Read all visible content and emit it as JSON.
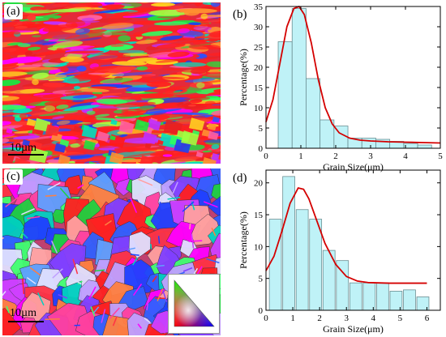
{
  "panels": {
    "a": {
      "label": "(a)",
      "scale_bar": "10µm"
    },
    "b": {
      "label": "(b)"
    },
    "c": {
      "label": "(c)",
      "scale_bar": "10µm"
    },
    "d": {
      "label": "(d)"
    }
  },
  "colors": {
    "bar_fill": "#bff2f7",
    "bar_stroke": "#6b8f93",
    "fit_line": "#d40000"
  },
  "chart_data": [
    {
      "panel": "b",
      "type": "bar",
      "xlabel": "Grain Size(μm)",
      "ylabel": "Percentage(%)",
      "xlim": [
        0,
        5
      ],
      "ylim": [
        0,
        35
      ],
      "xticks": [
        0,
        1,
        2,
        3,
        4,
        5
      ],
      "yticks": [
        0,
        5,
        10,
        15,
        20,
        25,
        30,
        35
      ],
      "bin_width": 0.4,
      "bar_centers": [
        0.55,
        0.95,
        1.35,
        1.75,
        2.15,
        2.55,
        2.95,
        3.35,
        3.75,
        4.15,
        4.55
      ],
      "values": [
        26.3,
        34.5,
        17.2,
        7.0,
        5.5,
        2.5,
        2.5,
        2.2,
        1.7,
        1.2,
        0.8
      ],
      "fit_curve": {
        "type": "lognormal-like",
        "x": [
          0,
          0.2,
          0.4,
          0.6,
          0.8,
          0.95,
          1.1,
          1.3,
          1.5,
          1.7,
          1.9,
          2.1,
          2.4,
          2.7,
          3.0,
          3.5,
          4.0,
          4.5,
          5.0
        ],
        "y": [
          6.5,
          12.0,
          21.0,
          30.0,
          34.5,
          35.0,
          33.0,
          26.0,
          17.0,
          10.0,
          6.0,
          3.8,
          2.5,
          2.0,
          1.8,
          1.6,
          1.5,
          1.4,
          1.3
        ]
      }
    },
    {
      "panel": "d",
      "type": "bar",
      "xlabel": "Grain Size(μm)",
      "ylabel": "Percentage(%)",
      "xlim": [
        0,
        6.5
      ],
      "ylim": [
        0,
        22
      ],
      "xticks": [
        0,
        1,
        2,
        3,
        4,
        5,
        6
      ],
      "yticks": [
        0,
        5,
        10,
        15,
        20
      ],
      "bin_width": 0.45,
      "bar_centers": [
        0.35,
        0.85,
        1.35,
        1.85,
        2.35,
        2.85,
        3.35,
        3.85,
        4.35,
        4.85,
        5.35,
        5.85
      ],
      "values": [
        14.3,
        21.0,
        15.8,
        14.3,
        9.4,
        7.8,
        4.3,
        4.3,
        4.3,
        3.0,
        3.2,
        2.1
      ],
      "fit_curve": {
        "type": "lognormal-like",
        "x": [
          0,
          0.3,
          0.6,
          0.9,
          1.2,
          1.4,
          1.6,
          1.9,
          2.2,
          2.6,
          3.0,
          3.4,
          3.8,
          4.2,
          4.6,
          5.0,
          5.5,
          6.0
        ],
        "y": [
          6.2,
          8.5,
          12.5,
          16.8,
          19.2,
          19.0,
          17.5,
          14.0,
          10.5,
          7.2,
          5.3,
          4.6,
          4.35,
          4.3,
          4.25,
          4.25,
          4.25,
          4.25
        ]
      }
    }
  ]
}
